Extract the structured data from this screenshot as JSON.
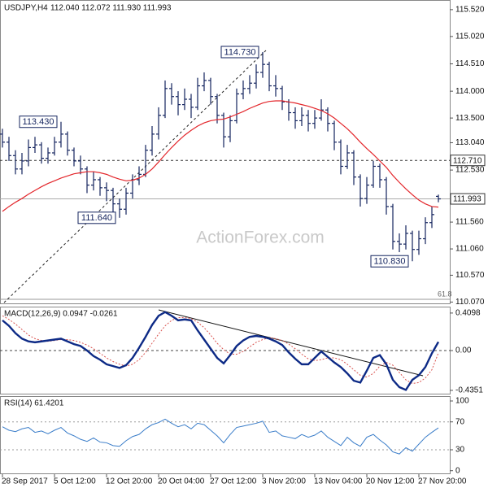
{
  "chart_data": [
    {
      "type": "ohlc",
      "title": "USDJPY,H4",
      "quote": "112.040 112.072 111.930 111.993",
      "color": "#13235e",
      "open": [
        113.2,
        113.05,
        112.8,
        112.55,
        112.7,
        112.95,
        113.0,
        112.75,
        112.85,
        113.05,
        113.2,
        112.9,
        112.7,
        112.55,
        112.25,
        112.35,
        112.2,
        112.15,
        111.9,
        111.8,
        112.1,
        112.35,
        112.45,
        112.9,
        113.2,
        113.55,
        114.05,
        113.9,
        113.75,
        113.85,
        113.7,
        114.1,
        114.2,
        113.9,
        113.55,
        113.15,
        113.45,
        113.95,
        114.05,
        114.15,
        114.35,
        114.5,
        114.1,
        114.05,
        113.8,
        113.6,
        113.45,
        113.55,
        113.4,
        113.5,
        113.65,
        113.4,
        113.05,
        112.6,
        112.85,
        112.4,
        112.0,
        112.25,
        112.6,
        112.35,
        111.85,
        111.2,
        111.15,
        111.35,
        111.05,
        111.25,
        111.55,
        112.04
      ],
      "high": [
        113.3,
        113.15,
        112.9,
        112.85,
        113.1,
        113.15,
        113.05,
        112.95,
        113.15,
        113.43,
        113.25,
        112.95,
        112.8,
        112.6,
        112.5,
        112.4,
        112.3,
        112.2,
        112.0,
        112.2,
        112.45,
        112.6,
        113.0,
        113.35,
        113.7,
        114.2,
        114.15,
        114.0,
        114.05,
        113.95,
        114.25,
        114.35,
        114.25,
        113.95,
        113.6,
        113.55,
        114.05,
        114.2,
        114.3,
        114.5,
        114.73,
        114.55,
        114.3,
        114.1,
        113.85,
        113.7,
        113.7,
        113.65,
        113.65,
        113.85,
        113.7,
        113.45,
        113.1,
        113.0,
        112.9,
        112.45,
        112.4,
        112.7,
        112.65,
        112.4,
        111.9,
        111.35,
        111.5,
        111.4,
        111.4,
        111.65,
        111.85,
        112.072
      ],
      "low": [
        112.95,
        112.7,
        112.45,
        112.45,
        112.6,
        112.85,
        112.65,
        112.65,
        112.8,
        112.95,
        112.8,
        112.6,
        112.45,
        112.1,
        112.15,
        112.05,
        111.95,
        111.75,
        111.64,
        111.7,
        112.0,
        112.25,
        112.4,
        112.8,
        113.1,
        113.5,
        113.75,
        113.55,
        113.65,
        113.5,
        113.65,
        114.0,
        113.75,
        113.4,
        112.95,
        113.05,
        113.4,
        113.85,
        113.95,
        114.05,
        114.25,
        114.0,
        113.9,
        113.65,
        113.45,
        113.3,
        113.35,
        113.25,
        113.3,
        113.45,
        113.25,
        112.9,
        112.45,
        112.55,
        112.25,
        111.85,
        111.9,
        112.2,
        112.2,
        111.7,
        111.05,
        111.0,
        111.05,
        110.83,
        110.95,
        111.15,
        111.45,
        111.93
      ],
      "close": [
        113.05,
        112.8,
        112.55,
        112.7,
        112.95,
        113.0,
        112.75,
        112.85,
        113.05,
        113.2,
        112.9,
        112.7,
        112.55,
        112.25,
        112.35,
        112.2,
        112.15,
        111.9,
        111.8,
        112.1,
        112.35,
        112.45,
        112.9,
        113.2,
        113.55,
        114.05,
        113.9,
        113.75,
        113.85,
        113.7,
        114.1,
        114.2,
        113.9,
        113.55,
        113.15,
        113.45,
        113.95,
        114.05,
        114.15,
        114.35,
        114.5,
        114.1,
        114.05,
        113.8,
        113.6,
        113.45,
        113.55,
        113.4,
        113.5,
        113.65,
        113.4,
        113.05,
        112.6,
        112.85,
        112.4,
        112.0,
        112.25,
        112.6,
        112.35,
        111.85,
        111.2,
        111.15,
        111.35,
        111.05,
        111.25,
        111.55,
        111.7,
        111.993
      ],
      "ma": {
        "color": "#e3262b",
        "values": [
          111.76,
          111.85,
          111.93,
          112.0,
          112.08,
          112.15,
          112.22,
          112.28,
          112.33,
          112.38,
          112.42,
          112.46,
          112.48,
          112.5,
          112.5,
          112.48,
          112.45,
          112.4,
          112.36,
          112.33,
          112.34,
          112.38,
          112.45,
          112.55,
          112.68,
          112.82,
          112.95,
          113.07,
          113.18,
          113.27,
          113.35,
          113.41,
          113.45,
          113.47,
          113.48,
          113.52,
          113.57,
          113.62,
          113.68,
          113.73,
          113.78,
          113.81,
          113.82,
          113.82,
          113.8,
          113.78,
          113.75,
          113.72,
          113.68,
          113.64,
          113.58,
          113.5,
          113.4,
          113.3,
          113.18,
          113.05,
          112.93,
          112.82,
          112.7,
          112.58,
          112.43,
          112.3,
          112.18,
          112.07,
          111.97,
          111.9,
          111.85,
          111.84
        ]
      },
      "ylim": [
        110.03,
        115.7
      ],
      "yticks": [
        {
          "value": 115.52,
          "label": "115.520"
        },
        {
          "value": 115.02,
          "label": "115.020"
        },
        {
          "value": 114.51,
          "label": "114.510"
        },
        {
          "value": 114.0,
          "label": "114.000"
        },
        {
          "value": 113.5,
          "label": "113.500"
        },
        {
          "value": 113.04,
          "label": "113.040"
        },
        {
          "value": 112.53,
          "label": "112.530"
        },
        {
          "value": 111.56,
          "label": "111.560"
        },
        {
          "value": 111.06,
          "label": "111.060"
        },
        {
          "value": 110.57,
          "label": "110.570"
        },
        {
          "value": 110.07,
          "label": "110.070"
        }
      ],
      "levels": [
        {
          "value": 112.71,
          "label": "112.710",
          "style": "dashed"
        },
        {
          "value": 111.993,
          "label": "111.993",
          "style": "solid"
        }
      ],
      "annotations": [
        {
          "value": 113.43,
          "label": "113.430"
        },
        {
          "value": 114.73,
          "label": "114.730"
        },
        {
          "value": 111.64,
          "label": "111.640"
        },
        {
          "value": 110.83,
          "label": "110.830"
        }
      ],
      "fib_label": "61.8",
      "watermark": "ActionForex.com"
    },
    {
      "type": "macd",
      "title": "MACD(12,26,9) 0.0947 -0.0261",
      "series": [
        {
          "color": "#0d2a86",
          "values": [
            0.33,
            0.27,
            0.19,
            0.13,
            0.1,
            0.09,
            0.1,
            0.11,
            0.12,
            0.13,
            0.1,
            0.07,
            0.05,
            0.0,
            -0.06,
            -0.1,
            -0.15,
            -0.17,
            -0.19,
            -0.16,
            -0.08,
            0.03,
            0.15,
            0.28,
            0.38,
            0.42,
            0.38,
            0.33,
            0.34,
            0.33,
            0.22,
            0.12,
            0.02,
            -0.08,
            -0.14,
            -0.05,
            0.05,
            0.11,
            0.15,
            0.16,
            0.15,
            0.13,
            0.1,
            0.06,
            -0.02,
            -0.09,
            -0.15,
            -0.15,
            -0.08,
            -0.01,
            -0.07,
            -0.13,
            -0.18,
            -0.25,
            -0.33,
            -0.35,
            -0.22,
            -0.08,
            -0.05,
            -0.15,
            -0.32,
            -0.4,
            -0.43,
            -0.32,
            -0.27,
            -0.18,
            -0.03,
            0.0947
          ]
        },
        {
          "color": "#d9534f",
          "values": [
            0.38,
            0.34,
            0.29,
            0.23,
            0.17,
            0.13,
            0.11,
            0.1,
            0.11,
            0.12,
            0.12,
            0.11,
            0.09,
            0.06,
            0.02,
            -0.03,
            -0.08,
            -0.12,
            -0.15,
            -0.17,
            -0.15,
            -0.1,
            -0.02,
            0.08,
            0.18,
            0.27,
            0.33,
            0.36,
            0.36,
            0.35,
            0.31,
            0.25,
            0.17,
            0.08,
            0.01,
            -0.04,
            -0.04,
            -0.01,
            0.04,
            0.09,
            0.12,
            0.14,
            0.13,
            0.11,
            0.07,
            0.02,
            -0.04,
            -0.09,
            -0.11,
            -0.1,
            -0.08,
            -0.08,
            -0.1,
            -0.15,
            -0.21,
            -0.27,
            -0.29,
            -0.25,
            -0.17,
            -0.13,
            -0.16,
            -0.24,
            -0.32,
            -0.36,
            -0.35,
            -0.3,
            -0.21,
            -0.0261
          ]
        }
      ],
      "ylim": [
        -0.48,
        0.48
      ],
      "yticks": [
        {
          "value": 0.4098,
          "label": "0.4098"
        },
        {
          "value": 0,
          "label": "0.00"
        },
        {
          "value": -0.4351,
          "label": "-0.4351"
        }
      ],
      "zero_line": true
    },
    {
      "type": "line",
      "title": "RSI(14) 61.4201",
      "color": "#3a7dc9",
      "values": [
        63,
        58,
        56,
        60,
        62,
        55,
        57,
        53,
        58,
        62,
        54,
        50,
        45,
        42,
        47,
        41,
        40,
        36,
        35,
        43,
        49,
        52,
        60,
        66,
        69,
        74,
        68,
        63,
        66,
        60,
        68,
        66,
        58,
        50,
        40,
        52,
        62,
        64,
        66,
        68,
        71,
        55,
        57,
        50,
        48,
        46,
        52,
        48,
        51,
        57,
        48,
        42,
        36,
        48,
        40,
        35,
        48,
        52,
        44,
        37,
        27,
        24,
        33,
        28,
        38,
        48,
        55,
        61.4201
      ],
      "ylim": [
        -5,
        107
      ],
      "yticks": [
        100,
        70,
        30,
        0
      ],
      "levels": [
        70,
        30
      ],
      "categories": [
        "28 Sep 2017",
        null,
        null,
        null,
        null,
        null,
        null,
        null,
        "5 Oct 12:00",
        null,
        null,
        null,
        null,
        null,
        null,
        null,
        "12 Oct 20:00",
        null,
        null,
        null,
        null,
        null,
        null,
        null,
        "20 Oct 04:00",
        null,
        null,
        null,
        null,
        null,
        null,
        null,
        "27 Oct 12:00",
        null,
        null,
        null,
        null,
        null,
        null,
        null,
        "3 Nov 20:00",
        null,
        null,
        null,
        null,
        null,
        null,
        null,
        "13 Nov 04:00",
        null,
        null,
        null,
        null,
        null,
        null,
        null,
        "20 Nov 12:00",
        null,
        null,
        null,
        null,
        null,
        null,
        null,
        "27 Nov 20:00",
        null,
        null,
        null
      ]
    }
  ]
}
